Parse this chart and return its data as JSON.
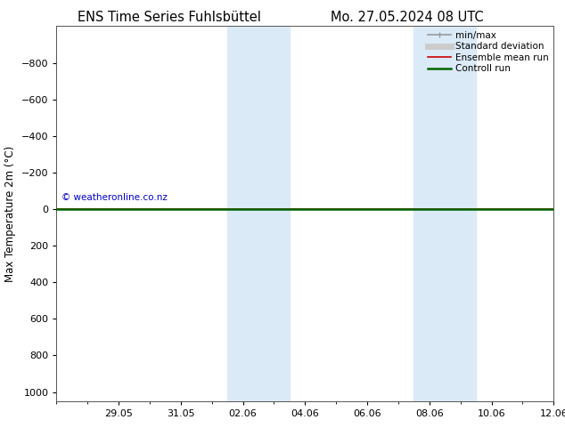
{
  "title_left": "ENS Time Series Fuhlsbüttel",
  "title_right": "Mo. 27.05.2024 08 UTC",
  "ylabel": "Max Temperature 2m (°C)",
  "ylim_top": -1000,
  "ylim_bottom": 1050,
  "yticks": [
    -800,
    -600,
    -400,
    -200,
    0,
    200,
    400,
    600,
    800,
    1000
  ],
  "xtick_labels": [
    "29.05",
    "31.05",
    "02.06",
    "04.06",
    "06.06",
    "08.06",
    "10.06",
    "12.06"
  ],
  "xtick_positions": [
    2,
    4,
    6,
    8,
    10,
    12,
    14,
    16
  ],
  "xlim": [
    0,
    16
  ],
  "shaded_bands": [
    {
      "x_start": 5.5,
      "x_end": 7.5
    },
    {
      "x_start": 11.5,
      "x_end": 13.5
    }
  ],
  "green_line_y": 0,
  "red_line_y": 0,
  "gray_line_y": 0,
  "copyright_text": "© weatheronline.co.nz",
  "legend_entries": [
    {
      "label": "min/max",
      "color": "#999999",
      "lw": 1.2
    },
    {
      "label": "Standard deviation",
      "color": "#cccccc",
      "lw": 5
    },
    {
      "label": "Ensemble mean run",
      "color": "#cc0000",
      "lw": 1.2
    },
    {
      "label": "Controll run",
      "color": "#006600",
      "lw": 1.8
    }
  ],
  "bg_color": "#ffffff",
  "plot_bg_color": "#ffffff",
  "shaded_color": "#dbeaf7",
  "title_fontsize": 10.5,
  "tick_fontsize": 8,
  "ylabel_fontsize": 8.5,
  "copyright_fontsize": 7.5,
  "legend_fontsize": 7.5
}
